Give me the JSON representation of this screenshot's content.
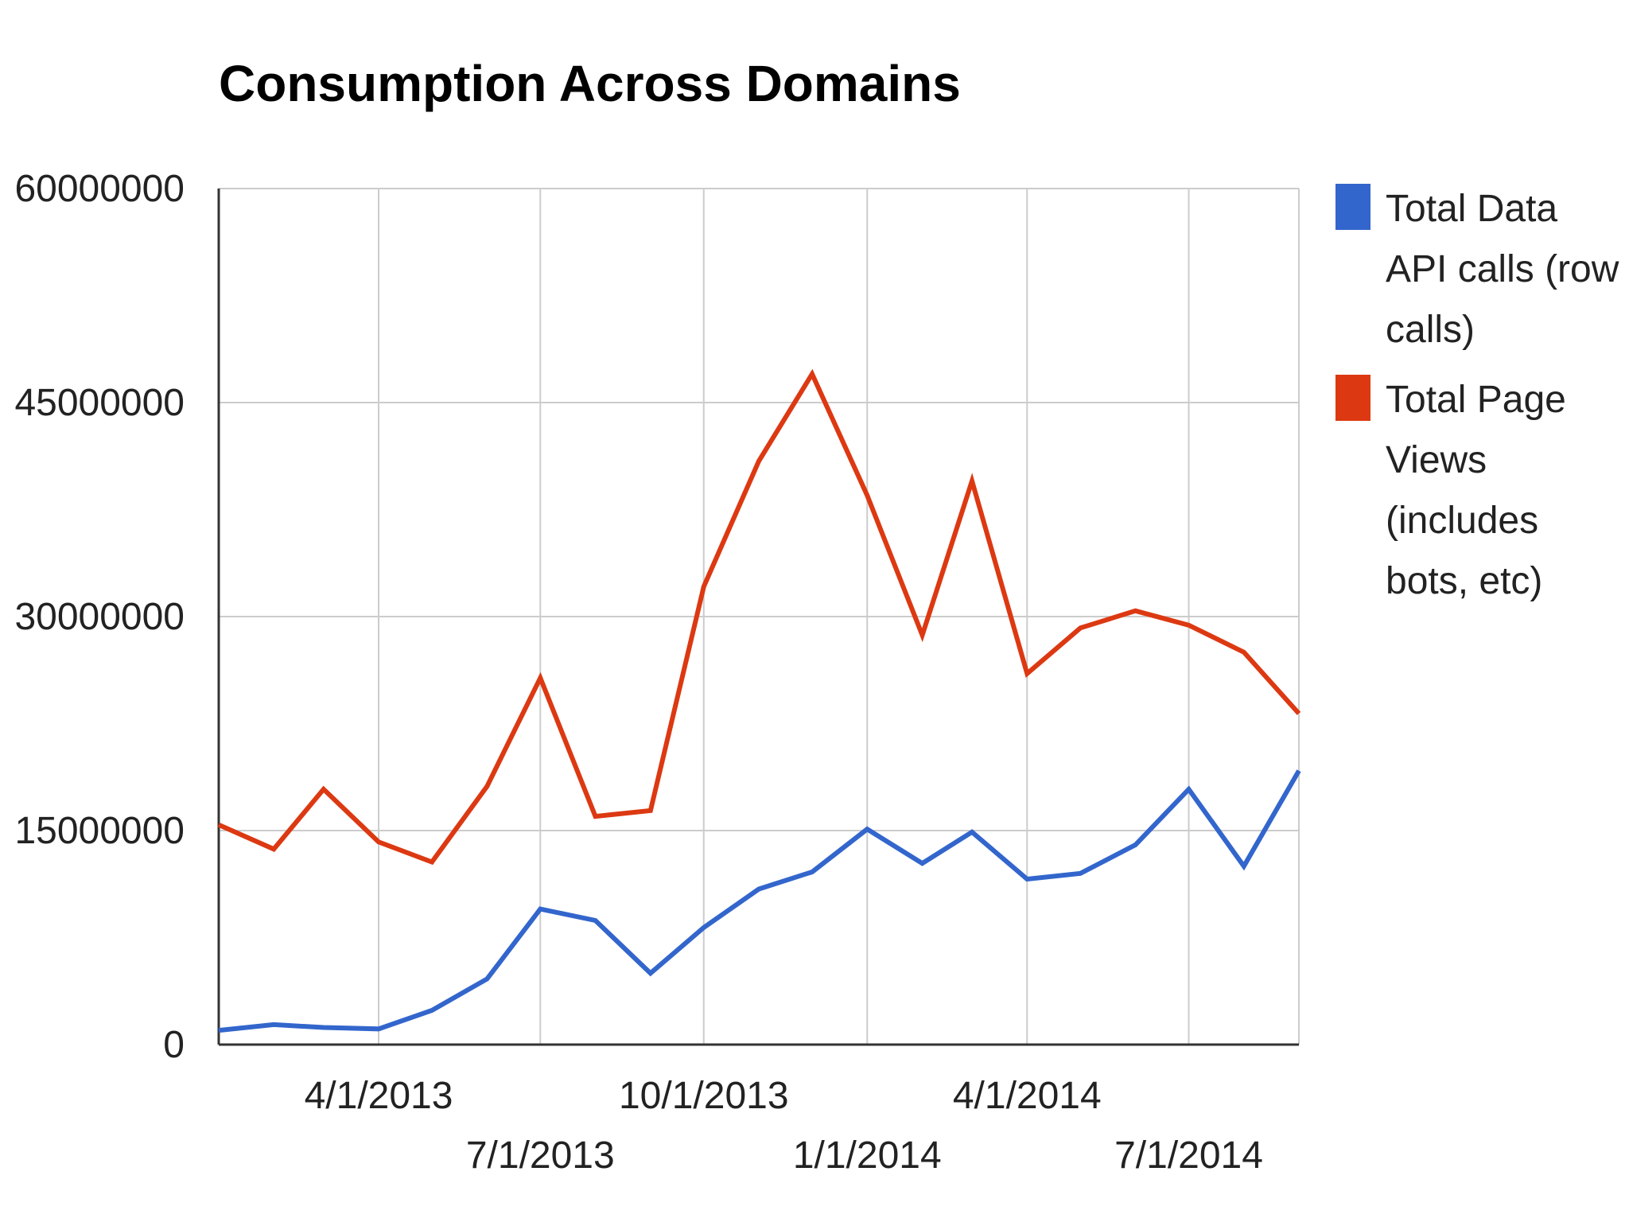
{
  "chart_data": {
    "type": "line",
    "title": "Consumption Across Domains",
    "xlabel": "",
    "ylabel": "",
    "x": [
      "2013-01-01",
      "2013-02-01",
      "2013-03-01",
      "2013-04-01",
      "2013-05-01",
      "2013-06-01",
      "2013-07-01",
      "2013-08-01",
      "2013-09-01",
      "2013-10-01",
      "2013-11-01",
      "2013-12-01",
      "2014-01-01",
      "2014-02-01",
      "2014-03-01",
      "2014-04-01",
      "2014-05-01",
      "2014-06-01",
      "2014-07-01",
      "2014-08-01",
      "2014-09-01"
    ],
    "x_ticks": [
      {
        "date": "2013-04-01",
        "label": "4/1/2013"
      },
      {
        "date": "2013-07-01",
        "label": "7/1/2013"
      },
      {
        "date": "2013-10-01",
        "label": "10/1/2013"
      },
      {
        "date": "2014-01-01",
        "label": "1/1/2014"
      },
      {
        "date": "2014-04-01",
        "label": "4/1/2014"
      },
      {
        "date": "2014-07-01",
        "label": "7/1/2014"
      }
    ],
    "y_ticks": [
      {
        "value": 0,
        "label": "0"
      },
      {
        "value": 15000000,
        "label": "15000000"
      },
      {
        "value": 30000000,
        "label": "30000000"
      },
      {
        "value": 45000000,
        "label": "45000000"
      },
      {
        "value": 60000000,
        "label": "60000000"
      }
    ],
    "xlim": [
      "2013-01-01",
      "2014-09-01"
    ],
    "ylim": [
      0,
      60000000
    ],
    "grid": true,
    "legend_position": "right",
    "series": [
      {
        "name": "Total Data API calls (row calls)",
        "legend_lines": [
          "Total Data",
          "API calls (row",
          "calls)"
        ],
        "color": "#3366cc",
        "values": [
          1000000,
          1400000,
          1200000,
          1100000,
          2400000,
          4600000,
          9500000,
          8700000,
          5000000,
          8200000,
          10900000,
          12100000,
          15100000,
          12700000,
          14900000,
          11600000,
          12000000,
          14000000,
          17900000,
          12500000,
          19200000
        ]
      },
      {
        "name": "Total Page Views (includes bots, etc)",
        "legend_lines": [
          "Total Page",
          "Views",
          "(includes",
          "bots, etc)"
        ],
        "color": "#dc3912",
        "values": [
          15400000,
          13700000,
          17900000,
          14200000,
          12800000,
          18100000,
          25700000,
          16000000,
          16400000,
          32100000,
          40900000,
          47000000,
          38500000,
          28700000,
          39500000,
          26000000,
          29200000,
          30400000,
          29400000,
          27500000,
          23200000
        ]
      }
    ]
  }
}
